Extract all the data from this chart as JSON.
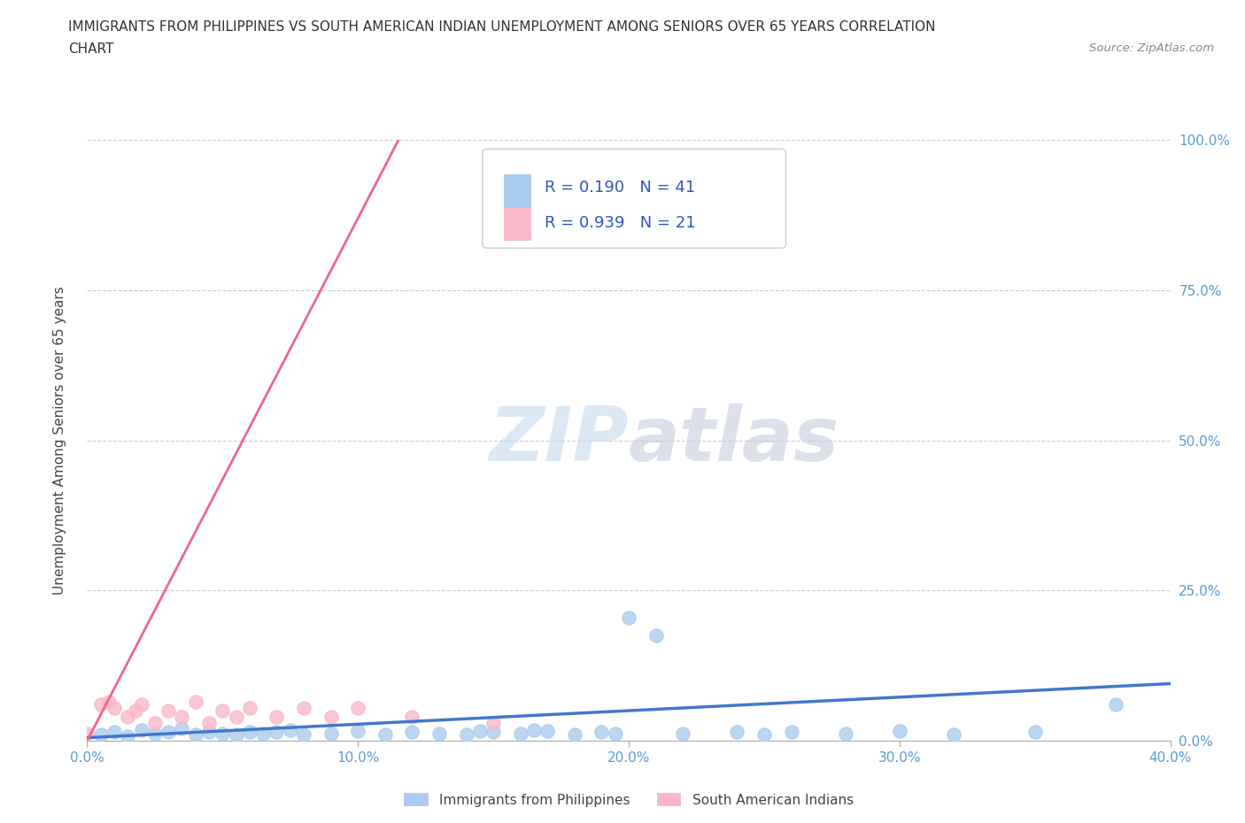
{
  "title_line1": "IMMIGRANTS FROM PHILIPPINES VS SOUTH AMERICAN INDIAN UNEMPLOYMENT AMONG SENIORS OVER 65 YEARS CORRELATION",
  "title_line2": "CHART",
  "source_text": "Source: ZipAtlas.com",
  "ylabel": "Unemployment Among Seniors over 65 years",
  "xmin": 0.0,
  "xmax": 0.4,
  "ymin": 0.0,
  "ymax": 1.0,
  "xticks": [
    0.0,
    0.1,
    0.2,
    0.3,
    0.4
  ],
  "xticklabels": [
    "0.0%",
    "10.0%",
    "20.0%",
    "30.0%",
    "40.0%"
  ],
  "yticks": [
    0.0,
    0.25,
    0.5,
    0.75,
    1.0
  ],
  "yticklabels": [
    "0.0%",
    "25.0%",
    "50.0%",
    "75.0%",
    "100.0%"
  ],
  "watermark_zip": "ZIP",
  "watermark_atlas": "atlas",
  "legend_label_philippines": "Immigrants from Philippines",
  "legend_label_south_american": "South American Indians",
  "R_philippines": 0.19,
  "N_philippines": 41,
  "R_south_american": 0.939,
  "N_south_american": 21,
  "philippines_color": "#aaccee",
  "philippines_line_color": "#4477cc",
  "south_american_color": "#f8b8c8",
  "south_american_line_color": "#ee6688",
  "philippines_scatter_x": [
    0.005,
    0.01,
    0.015,
    0.02,
    0.025,
    0.03,
    0.035,
    0.04,
    0.045,
    0.05,
    0.055,
    0.06,
    0.065,
    0.07,
    0.075,
    0.08,
    0.09,
    0.1,
    0.11,
    0.12,
    0.13,
    0.14,
    0.145,
    0.15,
    0.16,
    0.165,
    0.17,
    0.18,
    0.19,
    0.195,
    0.2,
    0.21,
    0.22,
    0.24,
    0.25,
    0.26,
    0.28,
    0.3,
    0.32,
    0.35,
    0.38
  ],
  "philippines_scatter_y": [
    0.01,
    0.015,
    0.008,
    0.018,
    0.012,
    0.015,
    0.02,
    0.01,
    0.015,
    0.012,
    0.01,
    0.014,
    0.012,
    0.015,
    0.018,
    0.01,
    0.012,
    0.016,
    0.01,
    0.014,
    0.012,
    0.01,
    0.016,
    0.014,
    0.012,
    0.018,
    0.016,
    0.01,
    0.014,
    0.012,
    0.205,
    0.175,
    0.012,
    0.014,
    0.01,
    0.014,
    0.012,
    0.016,
    0.01,
    0.014,
    0.06
  ],
  "south_american_scatter_x": [
    0.0,
    0.005,
    0.008,
    0.01,
    0.015,
    0.018,
    0.02,
    0.025,
    0.03,
    0.035,
    0.04,
    0.045,
    0.05,
    0.055,
    0.06,
    0.07,
    0.08,
    0.09,
    0.1,
    0.12,
    0.15
  ],
  "south_american_scatter_y": [
    0.012,
    0.06,
    0.065,
    0.055,
    0.04,
    0.05,
    0.06,
    0.03,
    0.05,
    0.04,
    0.065,
    0.03,
    0.05,
    0.04,
    0.055,
    0.04,
    0.055,
    0.04,
    0.055,
    0.04,
    0.03
  ],
  "philippines_trend_x": [
    0.0,
    0.4
  ],
  "philippines_trend_y": [
    0.005,
    0.095
  ],
  "south_american_trend_x": [
    0.0,
    0.115
  ],
  "south_american_trend_y": [
    0.0,
    1.0
  ],
  "background_color": "#ffffff",
  "grid_color": "#cccccc",
  "title_color": "#333333",
  "axis_label_color": "#444444",
  "tick_color": "#5b9bd5",
  "source_color": "#888888"
}
